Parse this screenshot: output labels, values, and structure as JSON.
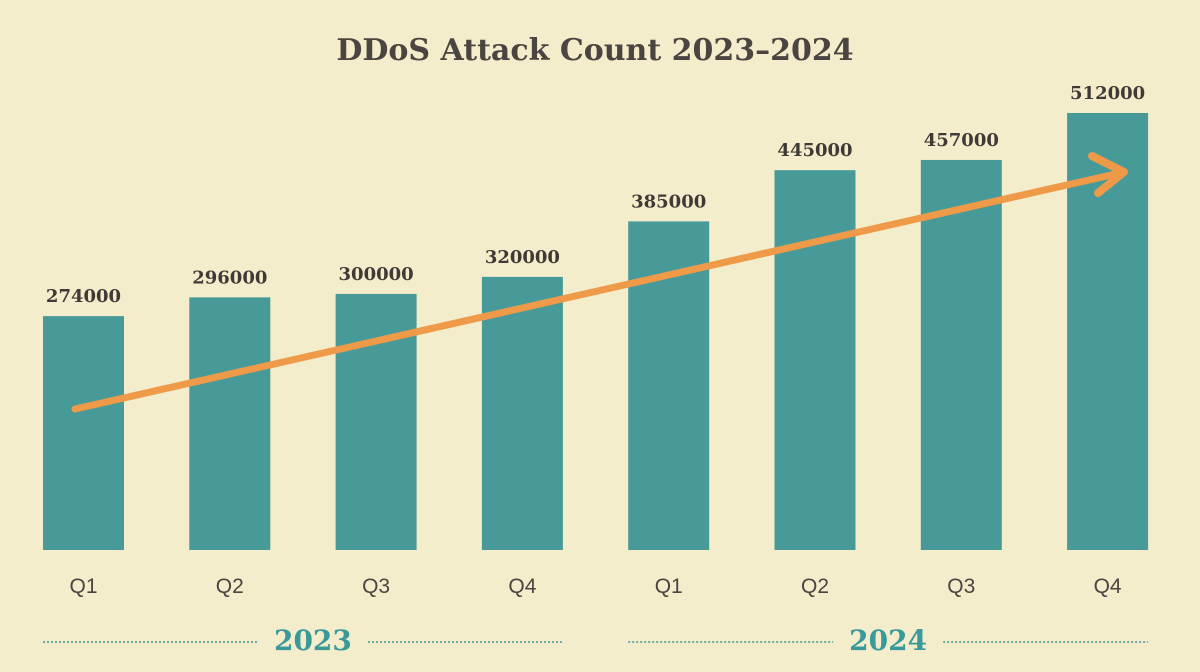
{
  "chart_data": {
    "type": "bar",
    "title": "DDoS Attack Count 2023–2024",
    "categories": [
      "Q1",
      "Q2",
      "Q3",
      "Q4",
      "Q1",
      "Q2",
      "Q3",
      "Q4"
    ],
    "groups": [
      {
        "label": "2023",
        "categories": [
          0,
          1,
          2,
          3
        ]
      },
      {
        "label": "2024",
        "categories": [
          4,
          5,
          6,
          7
        ]
      }
    ],
    "values": [
      274000,
      296000,
      300000,
      320000,
      385000,
      445000,
      457000,
      512000
    ],
    "data_labels": [
      "274000",
      "296000",
      "300000",
      "320000",
      "385000",
      "445000",
      "457000",
      "512000"
    ],
    "xlabel": "",
    "ylabel": "",
    "ylim": [
      0,
      512000
    ],
    "grid": false,
    "annotations": [
      "upward trend arrow"
    ],
    "colors": {
      "bar": "#479a98",
      "arrow": "#ee9a48",
      "title": "#4a4540",
      "label": "#3f3a36",
      "year": "#3a9a9a",
      "background": "#f4edcc"
    }
  }
}
